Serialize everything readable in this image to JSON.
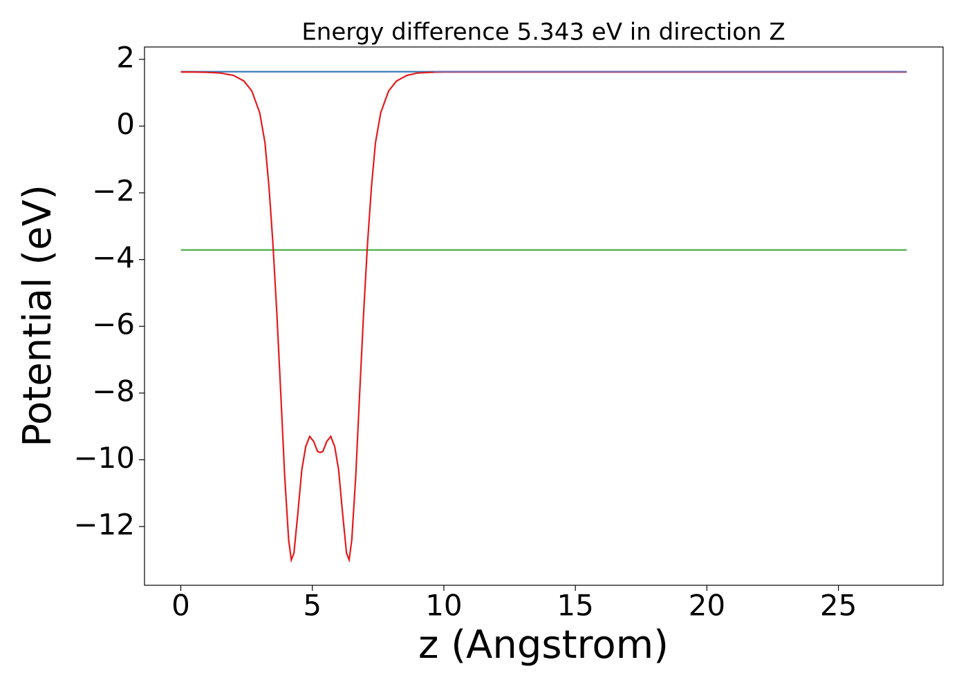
{
  "chart_data": {
    "type": "line",
    "title": "Energy difference 5.343 eV in direction Z",
    "xlabel": "z (Angstrom)",
    "ylabel": "Potential (eV)",
    "xlim": [
      -1.38,
      28.98
    ],
    "ylim": [
      -13.76,
      2.37
    ],
    "xticks": [
      0,
      5,
      10,
      15,
      20,
      25
    ],
    "yticks": [
      2,
      0,
      {
        "value": -2,
        "label": "−2"
      },
      {
        "value": -4,
        "label": "−4"
      },
      {
        "value": -6,
        "label": "−6"
      },
      {
        "value": -8,
        "label": "−8"
      },
      {
        "value": -10,
        "label": "−10"
      },
      {
        "value": -12,
        "label": "−12"
      }
    ],
    "series": [
      {
        "color": "#377eb8",
        "x": [
          0,
          27.6
        ],
        "values": [
          1.63,
          1.63
        ]
      },
      {
        "color": "#4daf4a",
        "x": [
          0,
          27.6
        ],
        "values": [
          -3.713,
          -3.713
        ]
      },
      {
        "color": "#e41a1c",
        "x": [
          0,
          0.5,
          1,
          1.5,
          2,
          2.4,
          2.7,
          3.0,
          3.2,
          3.35,
          3.5,
          3.65,
          3.8,
          3.95,
          4.1,
          4.2,
          4.3,
          4.45,
          4.6,
          4.75,
          4.9,
          5.05,
          5.2,
          5.3,
          5.4,
          5.55,
          5.7,
          5.85,
          6.0,
          6.15,
          6.3,
          6.4,
          6.5,
          6.65,
          6.8,
          6.95,
          7.1,
          7.25,
          7.4,
          7.6,
          7.9,
          8.2,
          8.6,
          9,
          9.5,
          10,
          15,
          20,
          27.6
        ],
        "values": [
          1.62,
          1.62,
          1.61,
          1.59,
          1.52,
          1.35,
          1.05,
          0.4,
          -0.5,
          -1.8,
          -3.5,
          -5.6,
          -8.0,
          -10.5,
          -12.4,
          -13.0,
          -12.8,
          -11.6,
          -10.3,
          -9.6,
          -9.3,
          -9.45,
          -9.75,
          -9.78,
          -9.75,
          -9.45,
          -9.3,
          -9.6,
          -10.3,
          -11.6,
          -12.8,
          -13.0,
          -12.4,
          -10.5,
          -8.0,
          -5.6,
          -3.5,
          -1.8,
          -0.5,
          0.4,
          1.05,
          1.35,
          1.52,
          1.59,
          1.61,
          1.62,
          1.62,
          1.62,
          1.62
        ]
      },
      {
        "color": "#7b6bb0",
        "x": [
          9.6,
          27.6
        ],
        "values": [
          1.63,
          1.63
        ]
      }
    ]
  }
}
